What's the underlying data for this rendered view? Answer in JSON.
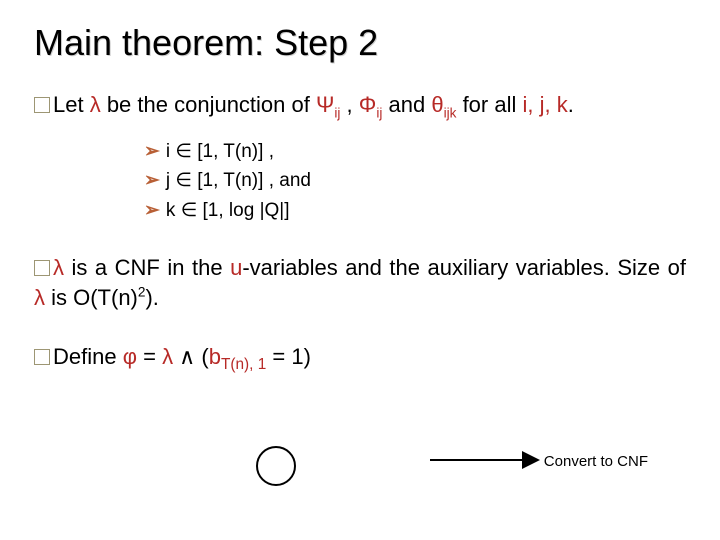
{
  "title": "Main theorem:  Step 2",
  "para1_a": "Let ",
  "lambda": "λ",
  "para1_b": " be the conjunction of ",
  "psi": "Ψ",
  "ij": "ij",
  "para1_c": " , ",
  "phi": "Φ",
  "para1_d": " and ",
  "theta": "θ",
  "ijk": "ijk",
  "para1_e": " for all ",
  "para1_f": "i, j, k",
  "para1_g": ".",
  "sub1": "i ∈ [1, T(n)] ,",
  "sub2": "j ∈ [1, T(n)] , and",
  "sub3": "k ∈ [1, log |Q|]",
  "para2_a": " is a CNF in the ",
  "uvar": "u",
  "para2_b": "-variables and the auxiliary variables.  Size of ",
  "para2_c": " is O(T(n)",
  "sq": "2",
  "para2_d": ").",
  "define": "Define ",
  "phi2": "φ",
  "eq1": " = ",
  "and": " ∧  ",
  "lparen": "(",
  "bvar": "b",
  "bsub": "T(n), 1",
  "eq2": " = 1)",
  "convert": "Convert to CNF",
  "colors": {
    "red": "#b72a27",
    "chev": "#b85f35"
  }
}
